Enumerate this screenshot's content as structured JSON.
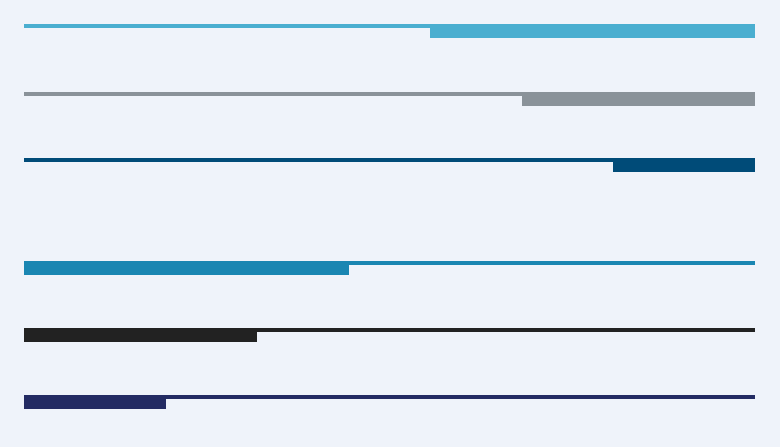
{
  "rows": [
    {
      "color": "#4aaed0",
      "fill": 0.445,
      "align": "right"
    },
    {
      "color": "#8a9299",
      "fill": 0.319,
      "align": "right"
    },
    {
      "color": "#004b78",
      "fill": 0.194,
      "align": "right"
    },
    {
      "color": "#1a86b2",
      "fill": 0.445,
      "align": "left"
    },
    {
      "color": "#222222",
      "fill": 0.319,
      "align": "left"
    },
    {
      "color": "#232b63",
      "fill": 0.194,
      "align": "left"
    }
  ]
}
